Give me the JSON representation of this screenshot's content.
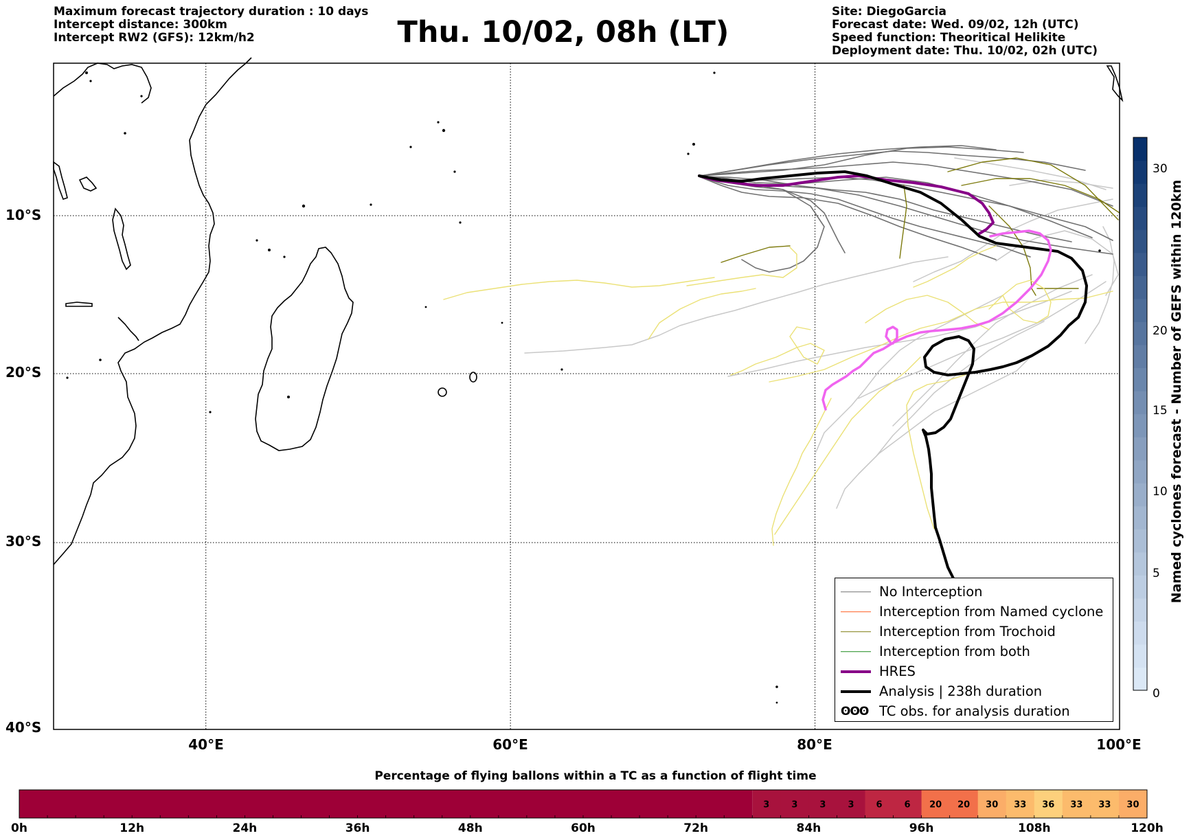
{
  "header": {
    "left": [
      "Maximum forecast trajectory duration : 10 days",
      "Intercept distance: 300km",
      "Intercept RW2 (GFS):  12km/h2"
    ],
    "title": "Thu. 10/02, 08h (LT)",
    "right": [
      "Site: DiegoGarcia",
      "Forecast date: Wed. 09/02, 12h (UTC)",
      "Speed function: Theoritical Helikite",
      "Deployment date: Thu. 10/02, 02h (UTC)"
    ]
  },
  "map": {
    "lon_range": [
      30,
      100
    ],
    "lat_range": [
      -40,
      0
    ],
    "lat_labels": [
      "10°S",
      "20°S",
      "30°S",
      "40°S"
    ],
    "lon_labels": [
      "40°E",
      "60°E",
      "80°E",
      "100°E"
    ],
    "grid": "dotted",
    "colors": {
      "no_interception": "#707070",
      "no_interception_light": "#c8c8c8",
      "named_cyclone": "#ff5a1f",
      "trochoid": "#7d7a0d",
      "both": "#1a8a1a",
      "hres": "#870087",
      "analysis": "#000000",
      "tc_obs": "#f064ef",
      "yellow": "#ebe176"
    }
  },
  "legend": {
    "items": [
      {
        "label": "No Interception",
        "color": "#707070",
        "width": 1.5
      },
      {
        "label": "Interception from Named cyclone",
        "color": "#ff5a1f",
        "width": 1.5
      },
      {
        "label": "Interception from Trochoid",
        "color": "#7d7a0d",
        "width": 1.5
      },
      {
        "label": "Interception from both",
        "color": "#1a8a1a",
        "width": 1.5
      },
      {
        "label": "HRES",
        "color": "#870087",
        "width": 4
      },
      {
        "label": "Analysis | 238h duration",
        "color": "#000000",
        "width": 4
      }
    ],
    "symbol_item": {
      "symbol": "ʘʘʘ",
      "label": "TC obs. for analysis duration"
    }
  },
  "colorbar": {
    "title": "Named cyclones forecast - Number of GEFS within 120km",
    "ticks": [
      "0",
      "5",
      "10",
      "15",
      "20",
      "30"
    ],
    "range": [
      0,
      33
    ],
    "color_low": "#dbe8f6",
    "color_high": "#08306b"
  },
  "flight_time_bar": {
    "title": "Percentage of flying ballons within a TC as a function of flight time",
    "hour_labels": [
      "0h",
      "12h",
      "24h",
      "36h",
      "48h",
      "60h",
      "72h",
      "84h",
      "96h",
      "108h",
      "120h"
    ],
    "dark_until_hour": 78,
    "dark_color": "#9e0037",
    "cells": [
      {
        "label": "3",
        "color": "#a8123d"
      },
      {
        "label": "3",
        "color": "#a8123d"
      },
      {
        "label": "3",
        "color": "#a8123d"
      },
      {
        "label": "3",
        "color": "#a8123d"
      },
      {
        "label": "6",
        "color": "#be2642"
      },
      {
        "label": "6",
        "color": "#be2642"
      },
      {
        "label": "20",
        "color": "#f2704a"
      },
      {
        "label": "20",
        "color": "#f2704a"
      },
      {
        "label": "30",
        "color": "#fbad68"
      },
      {
        "label": "33",
        "color": "#fcbb6c"
      },
      {
        "label": "36",
        "color": "#fdd07c"
      },
      {
        "label": "33",
        "color": "#fcbb6c"
      },
      {
        "label": "33",
        "color": "#fcbb6c"
      },
      {
        "label": "30",
        "color": "#fbad68"
      }
    ]
  }
}
